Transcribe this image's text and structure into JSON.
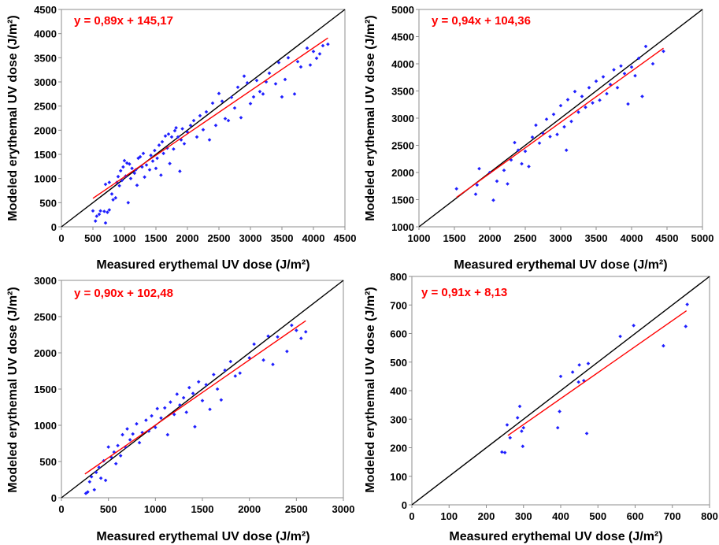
{
  "chart_data": [
    {
      "type": "scatter",
      "title": "",
      "xlabel": "Measured erythemal UV dose (J/m²)",
      "ylabel": "Modeled erythemal UV dose (J/m²)",
      "xlim": [
        0,
        4500
      ],
      "ylim": [
        0,
        4500
      ],
      "xticks": [
        0,
        500,
        1000,
        1500,
        2000,
        2500,
        3000,
        3500,
        4000,
        4500
      ],
      "yticks": [
        0,
        500,
        1000,
        1500,
        2000,
        2500,
        3000,
        3500,
        4000,
        4500
      ],
      "grid": false,
      "equation": "y = 0,89x + 145,17",
      "regression": {
        "slope": 0.89,
        "intercept": 145.17,
        "x_range": [
          500,
          4230
        ]
      },
      "identity_line": true,
      "colors": {
        "points": "#1f1fff",
        "regression": "#ff0000",
        "identity": "#000000",
        "equation": "#ff0000"
      },
      "points": [
        [
          500,
          330
        ],
        [
          540,
          120
        ],
        [
          560,
          220
        ],
        [
          600,
          260
        ],
        [
          620,
          330
        ],
        [
          680,
          320
        ],
        [
          700,
          80
        ],
        [
          700,
          880
        ],
        [
          730,
          300
        ],
        [
          760,
          350
        ],
        [
          760,
          920
        ],
        [
          800,
          680
        ],
        [
          820,
          560
        ],
        [
          860,
          600
        ],
        [
          880,
          920
        ],
        [
          900,
          1040
        ],
        [
          920,
          850
        ],
        [
          940,
          1160
        ],
        [
          960,
          960
        ],
        [
          980,
          1240
        ],
        [
          1000,
          1370
        ],
        [
          1020,
          1050
        ],
        [
          1040,
          1320
        ],
        [
          1060,
          500
        ],
        [
          1080,
          1300
        ],
        [
          1100,
          1000
        ],
        [
          1120,
          1210
        ],
        [
          1160,
          1110
        ],
        [
          1180,
          1180
        ],
        [
          1200,
          860
        ],
        [
          1220,
          1420
        ],
        [
          1250,
          1450
        ],
        [
          1280,
          1240
        ],
        [
          1300,
          1520
        ],
        [
          1320,
          1030
        ],
        [
          1350,
          1280
        ],
        [
          1400,
          1180
        ],
        [
          1420,
          1480
        ],
        [
          1450,
          1360
        ],
        [
          1480,
          1580
        ],
        [
          1500,
          1210
        ],
        [
          1520,
          1420
        ],
        [
          1550,
          1690
        ],
        [
          1580,
          1070
        ],
        [
          1600,
          1760
        ],
        [
          1620,
          1520
        ],
        [
          1650,
          1880
        ],
        [
          1680,
          1630
        ],
        [
          1700,
          1920
        ],
        [
          1720,
          1310
        ],
        [
          1750,
          1860
        ],
        [
          1780,
          1610
        ],
        [
          1800,
          1990
        ],
        [
          1820,
          2050
        ],
        [
          1850,
          1860
        ],
        [
          1880,
          1150
        ],
        [
          1900,
          1800
        ],
        [
          1920,
          2030
        ],
        [
          1950,
          1720
        ],
        [
          2000,
          1960
        ],
        [
          2050,
          2100
        ],
        [
          2100,
          2200
        ],
        [
          2150,
          1860
        ],
        [
          2200,
          2300
        ],
        [
          2250,
          2010
        ],
        [
          2300,
          2380
        ],
        [
          2350,
          1800
        ],
        [
          2400,
          2560
        ],
        [
          2450,
          2100
        ],
        [
          2500,
          2760
        ],
        [
          2550,
          2600
        ],
        [
          2600,
          2240
        ],
        [
          2650,
          2200
        ],
        [
          2700,
          2680
        ],
        [
          2750,
          2460
        ],
        [
          2800,
          2890
        ],
        [
          2850,
          2260
        ],
        [
          2900,
          3120
        ],
        [
          2950,
          2980
        ],
        [
          3000,
          2550
        ],
        [
          3050,
          2690
        ],
        [
          3100,
          3030
        ],
        [
          3150,
          2800
        ],
        [
          3200,
          2750
        ],
        [
          3250,
          3000
        ],
        [
          3300,
          3180
        ],
        [
          3400,
          2960
        ],
        [
          3450,
          3400
        ],
        [
          3500,
          2690
        ],
        [
          3550,
          3050
        ],
        [
          3600,
          3500
        ],
        [
          3700,
          2750
        ],
        [
          3750,
          3420
        ],
        [
          3800,
          3310
        ],
        [
          3900,
          3700
        ],
        [
          3950,
          3350
        ],
        [
          4000,
          3630
        ],
        [
          4050,
          3490
        ],
        [
          4100,
          3580
        ],
        [
          4150,
          3750
        ],
        [
          4230,
          3780
        ]
      ]
    },
    {
      "type": "scatter",
      "title": "",
      "xlabel": "Measured erythemal UV dose (J/m²)",
      "ylabel": "Modeled erythemal UV dose (J/m²)",
      "xlim": [
        1000,
        5000
      ],
      "ylim": [
        1000,
        5000
      ],
      "xticks": [
        1000,
        1500,
        2000,
        2500,
        3000,
        3500,
        4000,
        4500,
        5000
      ],
      "yticks": [
        1000,
        1500,
        2000,
        2500,
        3000,
        3500,
        4000,
        4500,
        5000
      ],
      "grid": false,
      "equation": "y = 0,94x + 104,36",
      "regression": {
        "slope": 0.94,
        "intercept": 104.36,
        "x_range": [
          1530,
          4450
        ]
      },
      "identity_line": true,
      "colors": {
        "points": "#1f1fff",
        "regression": "#ff0000",
        "identity": "#000000",
        "equation": "#ff0000"
      },
      "points": [
        [
          1530,
          1700
        ],
        [
          1800,
          1600
        ],
        [
          1820,
          1770
        ],
        [
          1850,
          2070
        ],
        [
          2000,
          2000
        ],
        [
          2050,
          1490
        ],
        [
          2100,
          1840
        ],
        [
          2200,
          2040
        ],
        [
          2250,
          1790
        ],
        [
          2300,
          2230
        ],
        [
          2350,
          2550
        ],
        [
          2400,
          2410
        ],
        [
          2450,
          2160
        ],
        [
          2500,
          2390
        ],
        [
          2550,
          2110
        ],
        [
          2600,
          2650
        ],
        [
          2650,
          2870
        ],
        [
          2700,
          2540
        ],
        [
          2750,
          2720
        ],
        [
          2800,
          2980
        ],
        [
          2850,
          2660
        ],
        [
          2900,
          3070
        ],
        [
          2950,
          2700
        ],
        [
          3000,
          3230
        ],
        [
          3050,
          2840
        ],
        [
          3080,
          2410
        ],
        [
          3100,
          3340
        ],
        [
          3150,
          2940
        ],
        [
          3200,
          3490
        ],
        [
          3250,
          3110
        ],
        [
          3300,
          3400
        ],
        [
          3350,
          3200
        ],
        [
          3400,
          3560
        ],
        [
          3450,
          3280
        ],
        [
          3500,
          3680
        ],
        [
          3550,
          3330
        ],
        [
          3600,
          3760
        ],
        [
          3650,
          3450
        ],
        [
          3700,
          3620
        ],
        [
          3750,
          3890
        ],
        [
          3800,
          3560
        ],
        [
          3850,
          3960
        ],
        [
          3900,
          3820
        ],
        [
          3950,
          3260
        ],
        [
          4000,
          3940
        ],
        [
          4050,
          3780
        ],
        [
          4100,
          4100
        ],
        [
          4150,
          3400
        ],
        [
          4200,
          4320
        ],
        [
          4300,
          4000
        ],
        [
          4450,
          4230
        ]
      ]
    },
    {
      "type": "scatter",
      "title": "",
      "xlabel": "Measured erythemal UV dose (J/m²)",
      "ylabel": "Modeled erythemal UV dose (J/m²)",
      "xlim": [
        0,
        3000
      ],
      "ylim": [
        0,
        3000
      ],
      "xticks": [
        0,
        500,
        1000,
        1500,
        2000,
        2500,
        3000
      ],
      "yticks": [
        0,
        500,
        1000,
        1500,
        2000,
        2500,
        3000
      ],
      "grid": false,
      "equation": "y = 0,90x + 102,48",
      "regression": {
        "slope": 0.9,
        "intercept": 102.48,
        "x_range": [
          250,
          2600
        ]
      },
      "identity_line": true,
      "colors": {
        "points": "#1f1fff",
        "regression": "#ff0000",
        "identity": "#000000",
        "equation": "#ff0000"
      },
      "points": [
        [
          260,
          60
        ],
        [
          280,
          80
        ],
        [
          300,
          220
        ],
        [
          320,
          290
        ],
        [
          350,
          110
        ],
        [
          370,
          350
        ],
        [
          400,
          420
        ],
        [
          420,
          270
        ],
        [
          450,
          510
        ],
        [
          470,
          240
        ],
        [
          500,
          700
        ],
        [
          530,
          560
        ],
        [
          560,
          630
        ],
        [
          580,
          470
        ],
        [
          600,
          720
        ],
        [
          630,
          580
        ],
        [
          650,
          870
        ],
        [
          680,
          700
        ],
        [
          700,
          950
        ],
        [
          730,
          800
        ],
        [
          760,
          880
        ],
        [
          800,
          1020
        ],
        [
          830,
          760
        ],
        [
          860,
          900
        ],
        [
          900,
          1070
        ],
        [
          930,
          920
        ],
        [
          960,
          1130
        ],
        [
          1000,
          970
        ],
        [
          1020,
          1230
        ],
        [
          1060,
          1100
        ],
        [
          1100,
          1240
        ],
        [
          1130,
          870
        ],
        [
          1160,
          1320
        ],
        [
          1200,
          1150
        ],
        [
          1230,
          1430
        ],
        [
          1260,
          1280
        ],
        [
          1300,
          1380
        ],
        [
          1330,
          1180
        ],
        [
          1360,
          1520
        ],
        [
          1400,
          1440
        ],
        [
          1420,
          980
        ],
        [
          1460,
          1600
        ],
        [
          1500,
          1340
        ],
        [
          1540,
          1560
        ],
        [
          1580,
          1220
        ],
        [
          1620,
          1700
        ],
        [
          1660,
          1500
        ],
        [
          1700,
          1350
        ],
        [
          1740,
          1760
        ],
        [
          1800,
          1880
        ],
        [
          1850,
          1680
        ],
        [
          1900,
          1720
        ],
        [
          2000,
          1930
        ],
        [
          2050,
          2120
        ],
        [
          2150,
          1900
        ],
        [
          2200,
          2230
        ],
        [
          2250,
          1840
        ],
        [
          2300,
          2220
        ],
        [
          2400,
          2020
        ],
        [
          2450,
          2380
        ],
        [
          2500,
          2310
        ],
        [
          2550,
          2200
        ],
        [
          2600,
          2290
        ]
      ]
    },
    {
      "type": "scatter",
      "title": "",
      "xlabel": "Measured erythemal UV dose (J/m²)",
      "ylabel": "Modeled erythemal UV dose (J/m²)",
      "xlim": [
        0,
        800
      ],
      "ylim": [
        0,
        800
      ],
      "xticks": [
        0,
        100,
        200,
        300,
        400,
        500,
        600,
        700,
        800
      ],
      "yticks": [
        0,
        100,
        200,
        300,
        400,
        500,
        600,
        700,
        800
      ],
      "grid": false,
      "equation": "y = 0,91x + 8,13",
      "regression": {
        "slope": 0.91,
        "intercept": 8.13,
        "x_range": [
          258,
          738
        ]
      },
      "identity_line": true,
      "colors": {
        "points": "#1f1fff",
        "regression": "#ff0000",
        "identity": "#000000",
        "equation": "#ff0000"
      },
      "points": [
        [
          242,
          185
        ],
        [
          250,
          183
        ],
        [
          256,
          280
        ],
        [
          264,
          235
        ],
        [
          284,
          305
        ],
        [
          290,
          345
        ],
        [
          295,
          258
        ],
        [
          298,
          205
        ],
        [
          300,
          270
        ],
        [
          392,
          270
        ],
        [
          397,
          327
        ],
        [
          400,
          450
        ],
        [
          432,
          465
        ],
        [
          448,
          430
        ],
        [
          450,
          490
        ],
        [
          462,
          435
        ],
        [
          470,
          250
        ],
        [
          474,
          495
        ],
        [
          560,
          590
        ],
        [
          596,
          628
        ],
        [
          676,
          557
        ],
        [
          736,
          625
        ],
        [
          740,
          702
        ]
      ]
    }
  ]
}
